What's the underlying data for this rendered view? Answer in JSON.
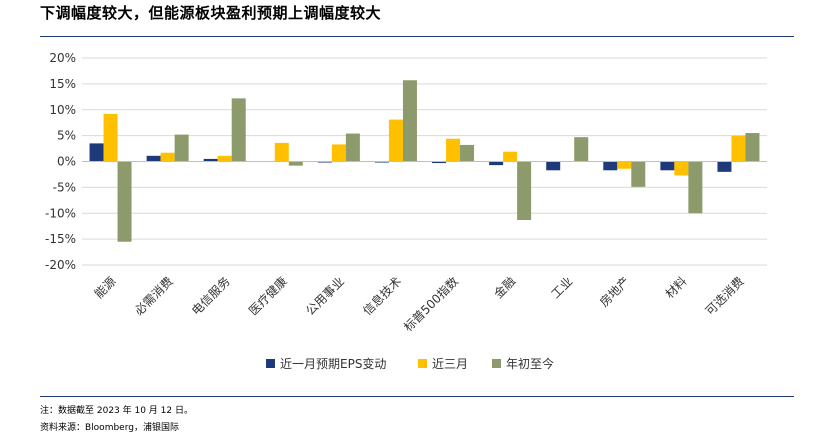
{
  "header": {
    "title": "下调幅度较大，但能源板块盈利预期上调幅度较大"
  },
  "footer": {
    "note": "注：数据截至 2023 年 10 月 12 日。",
    "source": "资料来源：Bloomberg，浦银国际"
  },
  "chart_data": {
    "type": "bar",
    "title": "",
    "xlabel": "",
    "ylabel": "",
    "ylim": [
      -0.2,
      0.2
    ],
    "yticks": [
      {
        "value": 0.2,
        "label": "20%"
      },
      {
        "value": 0.15,
        "label": "15%"
      },
      {
        "value": 0.1,
        "label": "10%"
      },
      {
        "value": 0.05,
        "label": "5%"
      },
      {
        "value": 0.0,
        "label": "0%"
      },
      {
        "value": -0.05,
        "label": "-5%"
      },
      {
        "value": -0.1,
        "label": "-10%"
      },
      {
        "value": -0.15,
        "label": "-15%"
      },
      {
        "value": -0.2,
        "label": "-20%"
      }
    ],
    "grid": true,
    "legend_position": "bottom",
    "categories": [
      "能源",
      "必需消费",
      "电信服务",
      "医疗健康",
      "公用事业",
      "信息技术",
      "标普500指数",
      "金融",
      "工业",
      "房地产",
      "材料",
      "可选消费"
    ],
    "series": [
      {
        "name": "近一月预期EPS变动",
        "color": "#1f3a7a",
        "values": [
          0.035,
          0.011,
          0.005,
          0.0,
          -0.002,
          -0.002,
          -0.003,
          -0.007,
          -0.017,
          -0.017,
          -0.017,
          -0.02
        ]
      },
      {
        "name": "近三月",
        "color": "#ffc000",
        "values": [
          0.092,
          0.017,
          0.011,
          0.036,
          0.033,
          0.081,
          0.044,
          0.019,
          0.0,
          -0.014,
          -0.027,
          0.05
        ]
      },
      {
        "name": "年初至今",
        "color": "#8c9a6c",
        "values": [
          -0.155,
          0.052,
          0.122,
          -0.008,
          0.054,
          0.157,
          0.032,
          -0.113,
          0.047,
          -0.049,
          -0.1,
          0.055
        ]
      }
    ]
  }
}
